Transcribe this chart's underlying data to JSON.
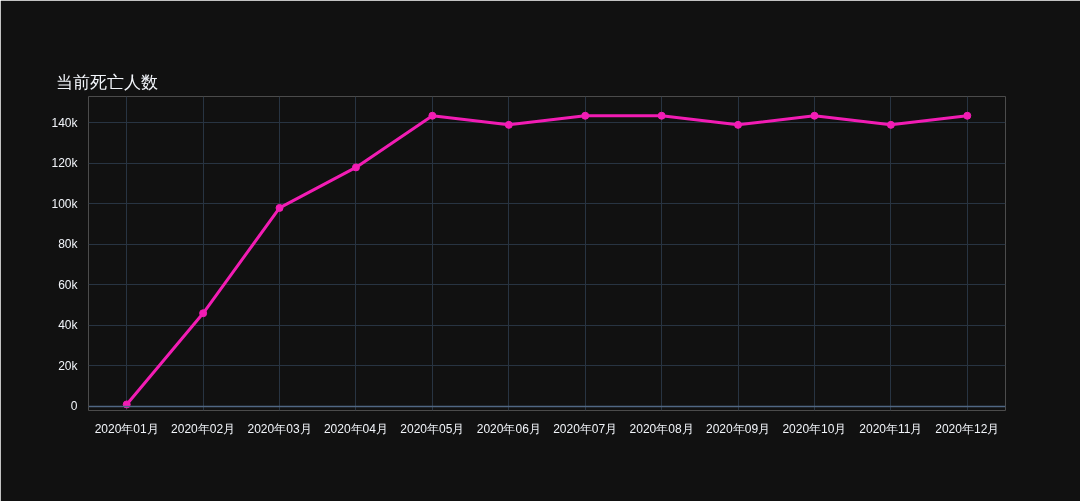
{
  "chart_data": {
    "type": "line",
    "title": "当前死亡人数",
    "categories": [
      "2020年01月",
      "2020年02月",
      "2020年03月",
      "2020年04月",
      "2020年05月",
      "2020年06月",
      "2020年07月",
      "2020年08月",
      "2020年09月",
      "2020年10月",
      "2020年11月",
      "2020年12月"
    ],
    "series": [
      {
        "color": "#f21cb4",
        "values": [
          1000,
          46000,
          98000,
          118000,
          143500,
          139000,
          143500,
          143500,
          139000,
          143500,
          139000,
          143500
        ]
      }
    ],
    "ylim": [
      -2000,
      153000
    ],
    "yticks": [
      0,
      {
        "value": 20000,
        "label": "20k"
      },
      {
        "value": 40000,
        "label": "40k"
      },
      {
        "value": 60000,
        "label": "60k"
      },
      {
        "value": 80000,
        "label": "80k"
      },
      {
        "value": 100000,
        "label": "100k"
      },
      {
        "value": 120000,
        "label": "120k"
      },
      {
        "value": 140000,
        "label": "140k"
      }
    ],
    "grid": true,
    "marker": "circle",
    "line_style": "solid",
    "ref_lines": [
      {
        "axis": "y",
        "value": 0,
        "color": "#506784"
      }
    ]
  }
}
